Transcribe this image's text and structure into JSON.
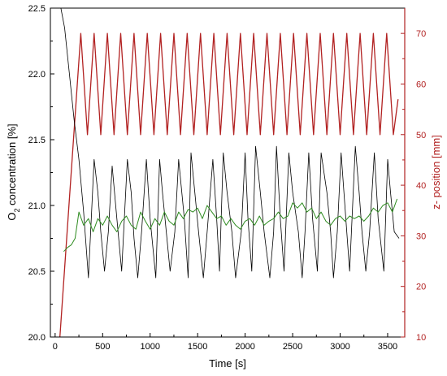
{
  "colors": {
    "left_axis": "#000000",
    "right_axis": "#b22222",
    "o2_raw": "#000000",
    "o2_smoothed": "#2e8b20",
    "z_position": "#b22222",
    "background": "#ffffff"
  },
  "chart_data": {
    "type": "line",
    "title": "",
    "xlabel": "Time [s]",
    "ylabel_left_main": "O",
    "ylabel_left_sub": "2",
    "ylabel_left_rest": " concentration [%]",
    "ylabel_right": "z- position [mm]",
    "xlim": [
      -50,
      3680
    ],
    "ylim_left": [
      20.0,
      22.5
    ],
    "ylim_right": [
      10,
      75
    ],
    "x_ticks": [
      0,
      500,
      1000,
      1500,
      2000,
      2500,
      3000,
      3500
    ],
    "x_tick_labels": [
      "0",
      "500",
      "1000",
      "1500",
      "2000",
      "2500",
      "3000",
      "3500"
    ],
    "y_left_ticks": [
      20.0,
      20.5,
      21.0,
      21.5,
      22.0,
      22.5
    ],
    "y_left_tick_labels": [
      "20.0",
      "20.5",
      "21.0",
      "21.5",
      "22.0",
      "22.5"
    ],
    "y_right_ticks": [
      10,
      20,
      30,
      40,
      50,
      60,
      70
    ],
    "y_right_tick_labels": [
      "10",
      "20",
      "30",
      "40",
      "50",
      "60",
      "70"
    ],
    "grid": false,
    "legend": "none",
    "series": [
      {
        "axis": "right",
        "style": "z_position",
        "x": [
          50,
          270,
          340,
          410,
          480,
          550,
          620,
          690,
          760,
          830,
          900,
          970,
          1040,
          1110,
          1180,
          1250,
          1320,
          1390,
          1460,
          1530,
          1600,
          1670,
          1740,
          1810,
          1880,
          1950,
          2020,
          2090,
          2160,
          2230,
          2300,
          2370,
          2440,
          2510,
          2580,
          2650,
          2720,
          2790,
          2860,
          2930,
          3000,
          3070,
          3140,
          3210,
          3280,
          3350,
          3420,
          3490,
          3560,
          3610
        ],
        "y": [
          10,
          70,
          50,
          70,
          50,
          70,
          50,
          70,
          50,
          70,
          50,
          70,
          50,
          70,
          50,
          70,
          50,
          70,
          50,
          70,
          50,
          70,
          50,
          70,
          50,
          70,
          50,
          70,
          50,
          70,
          50,
          70,
          50,
          70,
          50,
          70,
          50,
          70,
          50,
          70,
          50,
          70,
          50,
          70,
          50,
          70,
          50,
          70,
          50,
          57
        ]
      },
      {
        "axis": "left",
        "style": "o2_raw",
        "x": [
          60,
          100,
          150,
          200,
          250,
          300,
          350,
          410,
          450,
          480,
          520,
          560,
          600,
          650,
          700,
          760,
          800,
          830,
          870,
          910,
          960,
          1000,
          1060,
          1100,
          1130,
          1170,
          1210,
          1260,
          1300,
          1360,
          1400,
          1430,
          1470,
          1510,
          1560,
          1600,
          1660,
          1700,
          1730,
          1770,
          1810,
          1860,
          1900,
          1960,
          2000,
          2030,
          2070,
          2110,
          2160,
          2200,
          2260,
          2300,
          2330,
          2370,
          2410,
          2460,
          2500,
          2560,
          2600,
          2630,
          2670,
          2710,
          2760,
          2800,
          2860,
          2900,
          2930,
          2970,
          3010,
          3060,
          3100,
          3160,
          3200,
          3230,
          3270,
          3310,
          3360,
          3400,
          3460,
          3500,
          3530,
          3570,
          3620
        ],
        "y": [
          22.5,
          22.35,
          22.0,
          21.65,
          21.35,
          20.95,
          20.45,
          21.35,
          21.1,
          20.8,
          20.5,
          20.8,
          21.3,
          20.9,
          20.5,
          21.35,
          21.1,
          20.75,
          20.45,
          20.8,
          21.35,
          20.9,
          20.45,
          21.35,
          21.1,
          20.8,
          20.5,
          20.8,
          21.35,
          20.9,
          20.45,
          21.4,
          21.1,
          20.8,
          20.45,
          20.8,
          21.35,
          20.9,
          20.5,
          21.4,
          21.1,
          20.8,
          20.45,
          20.8,
          21.4,
          20.9,
          20.5,
          21.45,
          21.1,
          20.8,
          20.45,
          20.8,
          21.45,
          20.9,
          20.5,
          21.4,
          21.1,
          20.8,
          20.45,
          20.8,
          21.4,
          20.9,
          20.5,
          21.4,
          21.1,
          20.8,
          20.45,
          20.8,
          21.4,
          20.9,
          20.5,
          21.45,
          21.1,
          20.8,
          20.5,
          20.8,
          21.4,
          20.9,
          20.5,
          21.35,
          21.1,
          20.8,
          20.75
        ]
      },
      {
        "axis": "left",
        "style": "o2_smoothed",
        "x": [
          90,
          130,
          170,
          210,
          250,
          300,
          350,
          400,
          450,
          500,
          550,
          600,
          650,
          700,
          750,
          800,
          850,
          900,
          950,
          1000,
          1050,
          1100,
          1150,
          1200,
          1250,
          1300,
          1350,
          1400,
          1450,
          1500,
          1550,
          1600,
          1650,
          1700,
          1750,
          1800,
          1850,
          1900,
          1950,
          2000,
          2050,
          2100,
          2150,
          2200,
          2250,
          2300,
          2350,
          2400,
          2450,
          2500,
          2550,
          2600,
          2650,
          2700,
          2750,
          2800,
          2850,
          2900,
          2950,
          3000,
          3050,
          3100,
          3150,
          3200,
          3250,
          3300,
          3350,
          3400,
          3450,
          3500,
          3550,
          3600
        ],
        "y": [
          20.65,
          20.68,
          20.7,
          20.75,
          20.95,
          20.85,
          20.9,
          20.8,
          20.9,
          20.85,
          20.92,
          20.85,
          20.8,
          20.88,
          20.92,
          20.85,
          20.82,
          20.95,
          20.88,
          20.82,
          20.9,
          20.85,
          20.95,
          20.88,
          20.85,
          20.95,
          20.9,
          20.97,
          20.95,
          20.98,
          20.9,
          21.0,
          20.95,
          20.9,
          20.92,
          20.85,
          20.9,
          20.85,
          20.82,
          20.88,
          20.9,
          20.85,
          20.92,
          20.85,
          20.88,
          20.9,
          20.95,
          20.9,
          20.92,
          21.02,
          20.98,
          21.02,
          20.95,
          20.98,
          20.9,
          20.95,
          20.88,
          20.85,
          20.9,
          20.92,
          20.88,
          20.92,
          20.9,
          20.92,
          20.88,
          20.92,
          20.98,
          20.95,
          21.0,
          21.02,
          20.95,
          21.05
        ]
      }
    ]
  }
}
